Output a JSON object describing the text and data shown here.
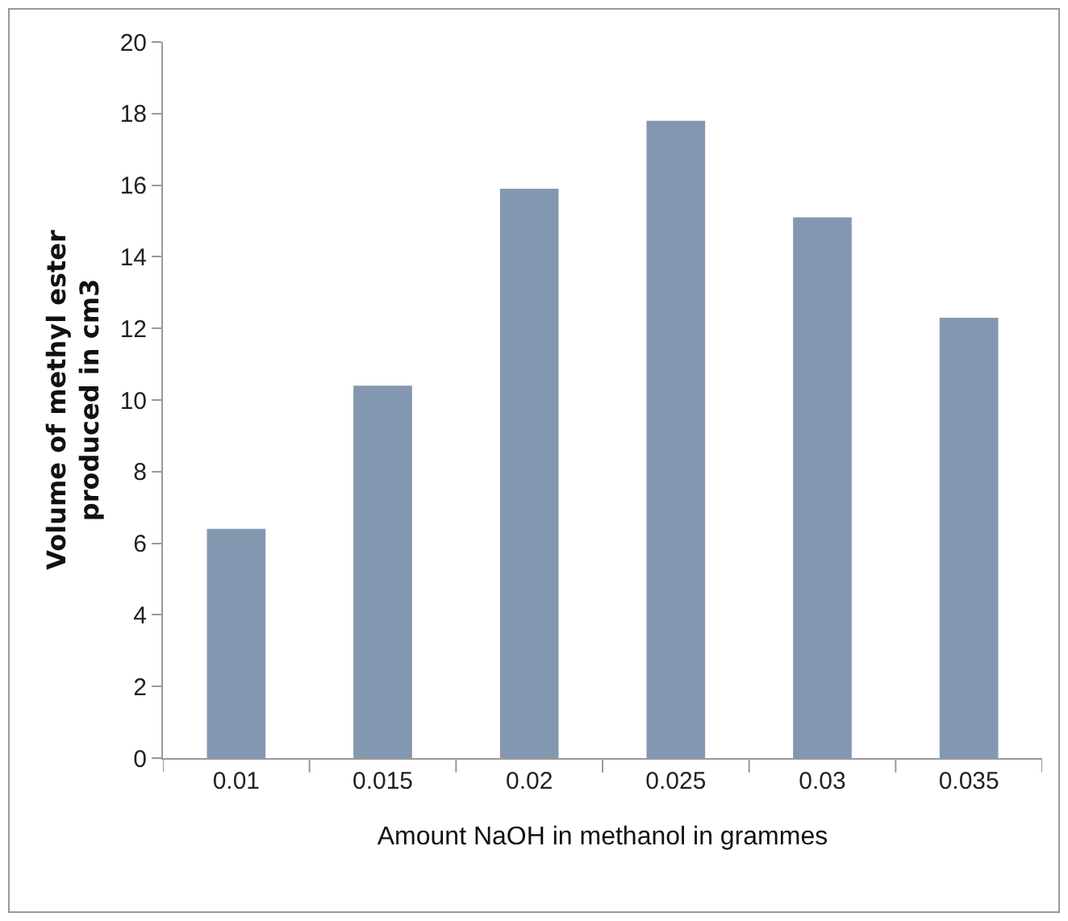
{
  "chart_data": {
    "type": "bar",
    "xlabel": "Amount NaOH in methanol in grammes",
    "ylabel": "Volume of methyl ester produced in cm3",
    "categories": [
      "0.01",
      "0.015",
      "0.02",
      "0.025",
      "0.03",
      "0.035"
    ],
    "values": [
      6.4,
      10.4,
      15.9,
      17.8,
      15.1,
      12.3
    ],
    "color": "#8497b0",
    "ylim": [
      0,
      20
    ],
    "yticks": [
      0,
      2,
      4,
      6,
      8,
      10,
      12,
      14,
      16,
      18,
      20
    ],
    "grid": false
  }
}
